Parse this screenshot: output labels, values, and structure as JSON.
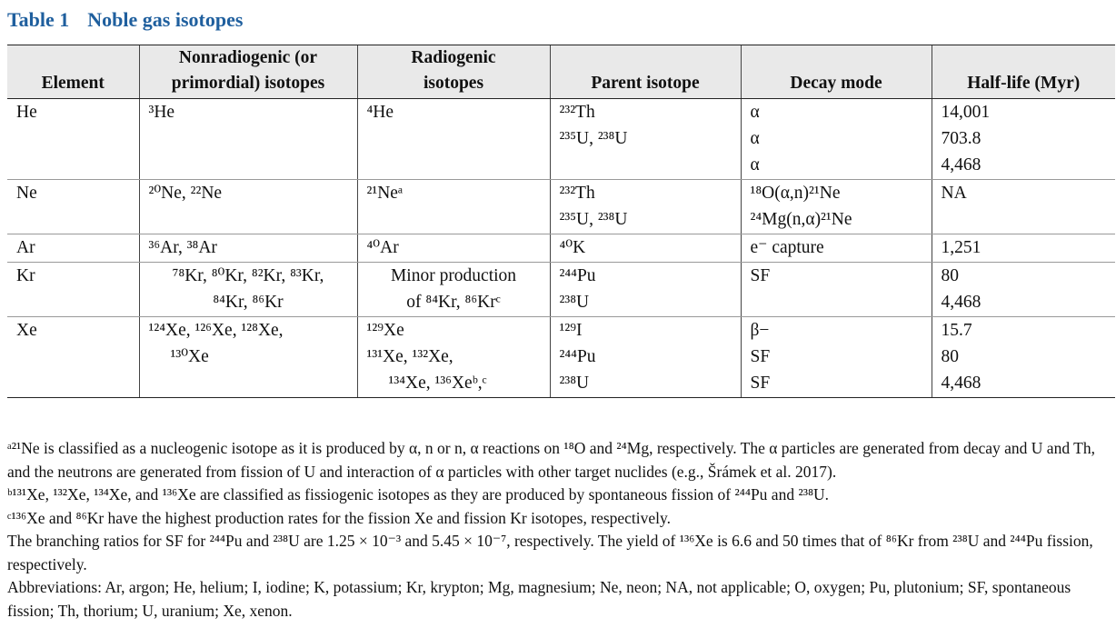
{
  "table_label": "Table 1",
  "table_title": "Noble gas isotopes",
  "columns": [
    {
      "line1": "",
      "line2": "Element"
    },
    {
      "line1": "Nonradiogenic (or",
      "line2": "primordial) isotopes"
    },
    {
      "line1": "Radiogenic",
      "line2": "isotopes"
    },
    {
      "line1": "",
      "line2": "Parent isotope"
    },
    {
      "line1": "",
      "line2": "Decay mode"
    },
    {
      "line1": "",
      "line2": "Half-life (Myr)"
    }
  ],
  "rows": [
    {
      "element": "He",
      "nonradiogenic": [
        "³He"
      ],
      "radiogenic": [
        "⁴He"
      ],
      "parent": [
        "²³²Th",
        "²³⁵U, ²³⁸U"
      ],
      "decay": [
        "α",
        "α",
        "α"
      ],
      "halflife": [
        "14,001",
        "703.8",
        "4,468"
      ]
    },
    {
      "element": "Ne",
      "nonradiogenic": [
        "²⁰Ne, ²²Ne"
      ],
      "radiogenic": [
        "²¹Neᵃ"
      ],
      "parent": [
        "²³²Th",
        "²³⁵U, ²³⁸U"
      ],
      "decay": [
        "¹⁸O(α,n)²¹Ne",
        "²⁴Mg(n,α)²¹Ne"
      ],
      "halflife": [
        "NA"
      ]
    },
    {
      "element": "Ar",
      "nonradiogenic": [
        "³⁶Ar, ³⁸Ar"
      ],
      "radiogenic": [
        "⁴⁰Ar"
      ],
      "parent": [
        "⁴⁰K"
      ],
      "decay": [
        "e⁻ capture"
      ],
      "halflife": [
        "1,251"
      ]
    },
    {
      "element": "Kr",
      "nonradiogenic": [
        "⁷⁸Kr, ⁸⁰Kr, ⁸²Kr, ⁸³Kr,",
        "⁸⁴Kr, ⁸⁶Kr"
      ],
      "radiogenic": [
        "Minor production",
        "of ⁸⁴Kr, ⁸⁶Krᶜ"
      ],
      "parent": [
        "²⁴⁴Pu",
        "²³⁸U"
      ],
      "decay": [
        "SF"
      ],
      "halflife": [
        "80",
        "4,468"
      ]
    },
    {
      "element": "Xe",
      "nonradiogenic": [
        "¹²⁴Xe, ¹²⁶Xe, ¹²⁸Xe,",
        "¹³⁰Xe"
      ],
      "radiogenic": [
        "¹²⁹Xe",
        "¹³¹Xe, ¹³²Xe,",
        "¹³⁴Xe, ¹³⁶Xeᵇ,ᶜ"
      ],
      "parent": [
        "¹²⁹I",
        "²⁴⁴Pu",
        "²³⁸U"
      ],
      "decay": [
        "β−",
        "SF",
        "SF"
      ],
      "halflife": [
        "15.7",
        "80",
        "4,468"
      ]
    }
  ],
  "footnotes": {
    "a": "ᵃ²¹Ne is classified as a nucleogenic isotope as it is produced by α, n or n, α reactions on ¹⁸O and ²⁴Mg, respectively. The α particles are generated from decay and U and Th, and the neutrons are generated from fission of U and interaction of α particles with other target nuclides (e.g., Šrámek et al. 2017).",
    "b": "ᵇ¹³¹Xe, ¹³²Xe, ¹³⁴Xe, and ¹³⁶Xe are classified as fissiogenic isotopes as they are produced by spontaneous fission of ²⁴⁴Pu and ²³⁸U.",
    "c": "ᶜ¹³⁶Xe and ⁸⁶Kr have the highest production rates for the fission Xe and fission Kr isotopes, respectively.",
    "branching": "The branching ratios for SF for ²⁴⁴Pu and ²³⁸U are 1.25 × 10⁻³ and 5.45 × 10⁻⁷, respectively. The yield of ¹³⁶Xe is 6.6 and 50 times that of ⁸⁶Kr from ²³⁸U and ²⁴⁴Pu fission, respectively.",
    "abbreviations": "Abbreviations: Ar, argon; He, helium; I, iodine; K, potassium; Kr, krypton; Mg, magnesium; Ne, neon; NA, not applicable; O, oxygen; Pu, plutonium; SF, spontaneous fission; Th, thorium; U, uranium; Xe, xenon."
  }
}
